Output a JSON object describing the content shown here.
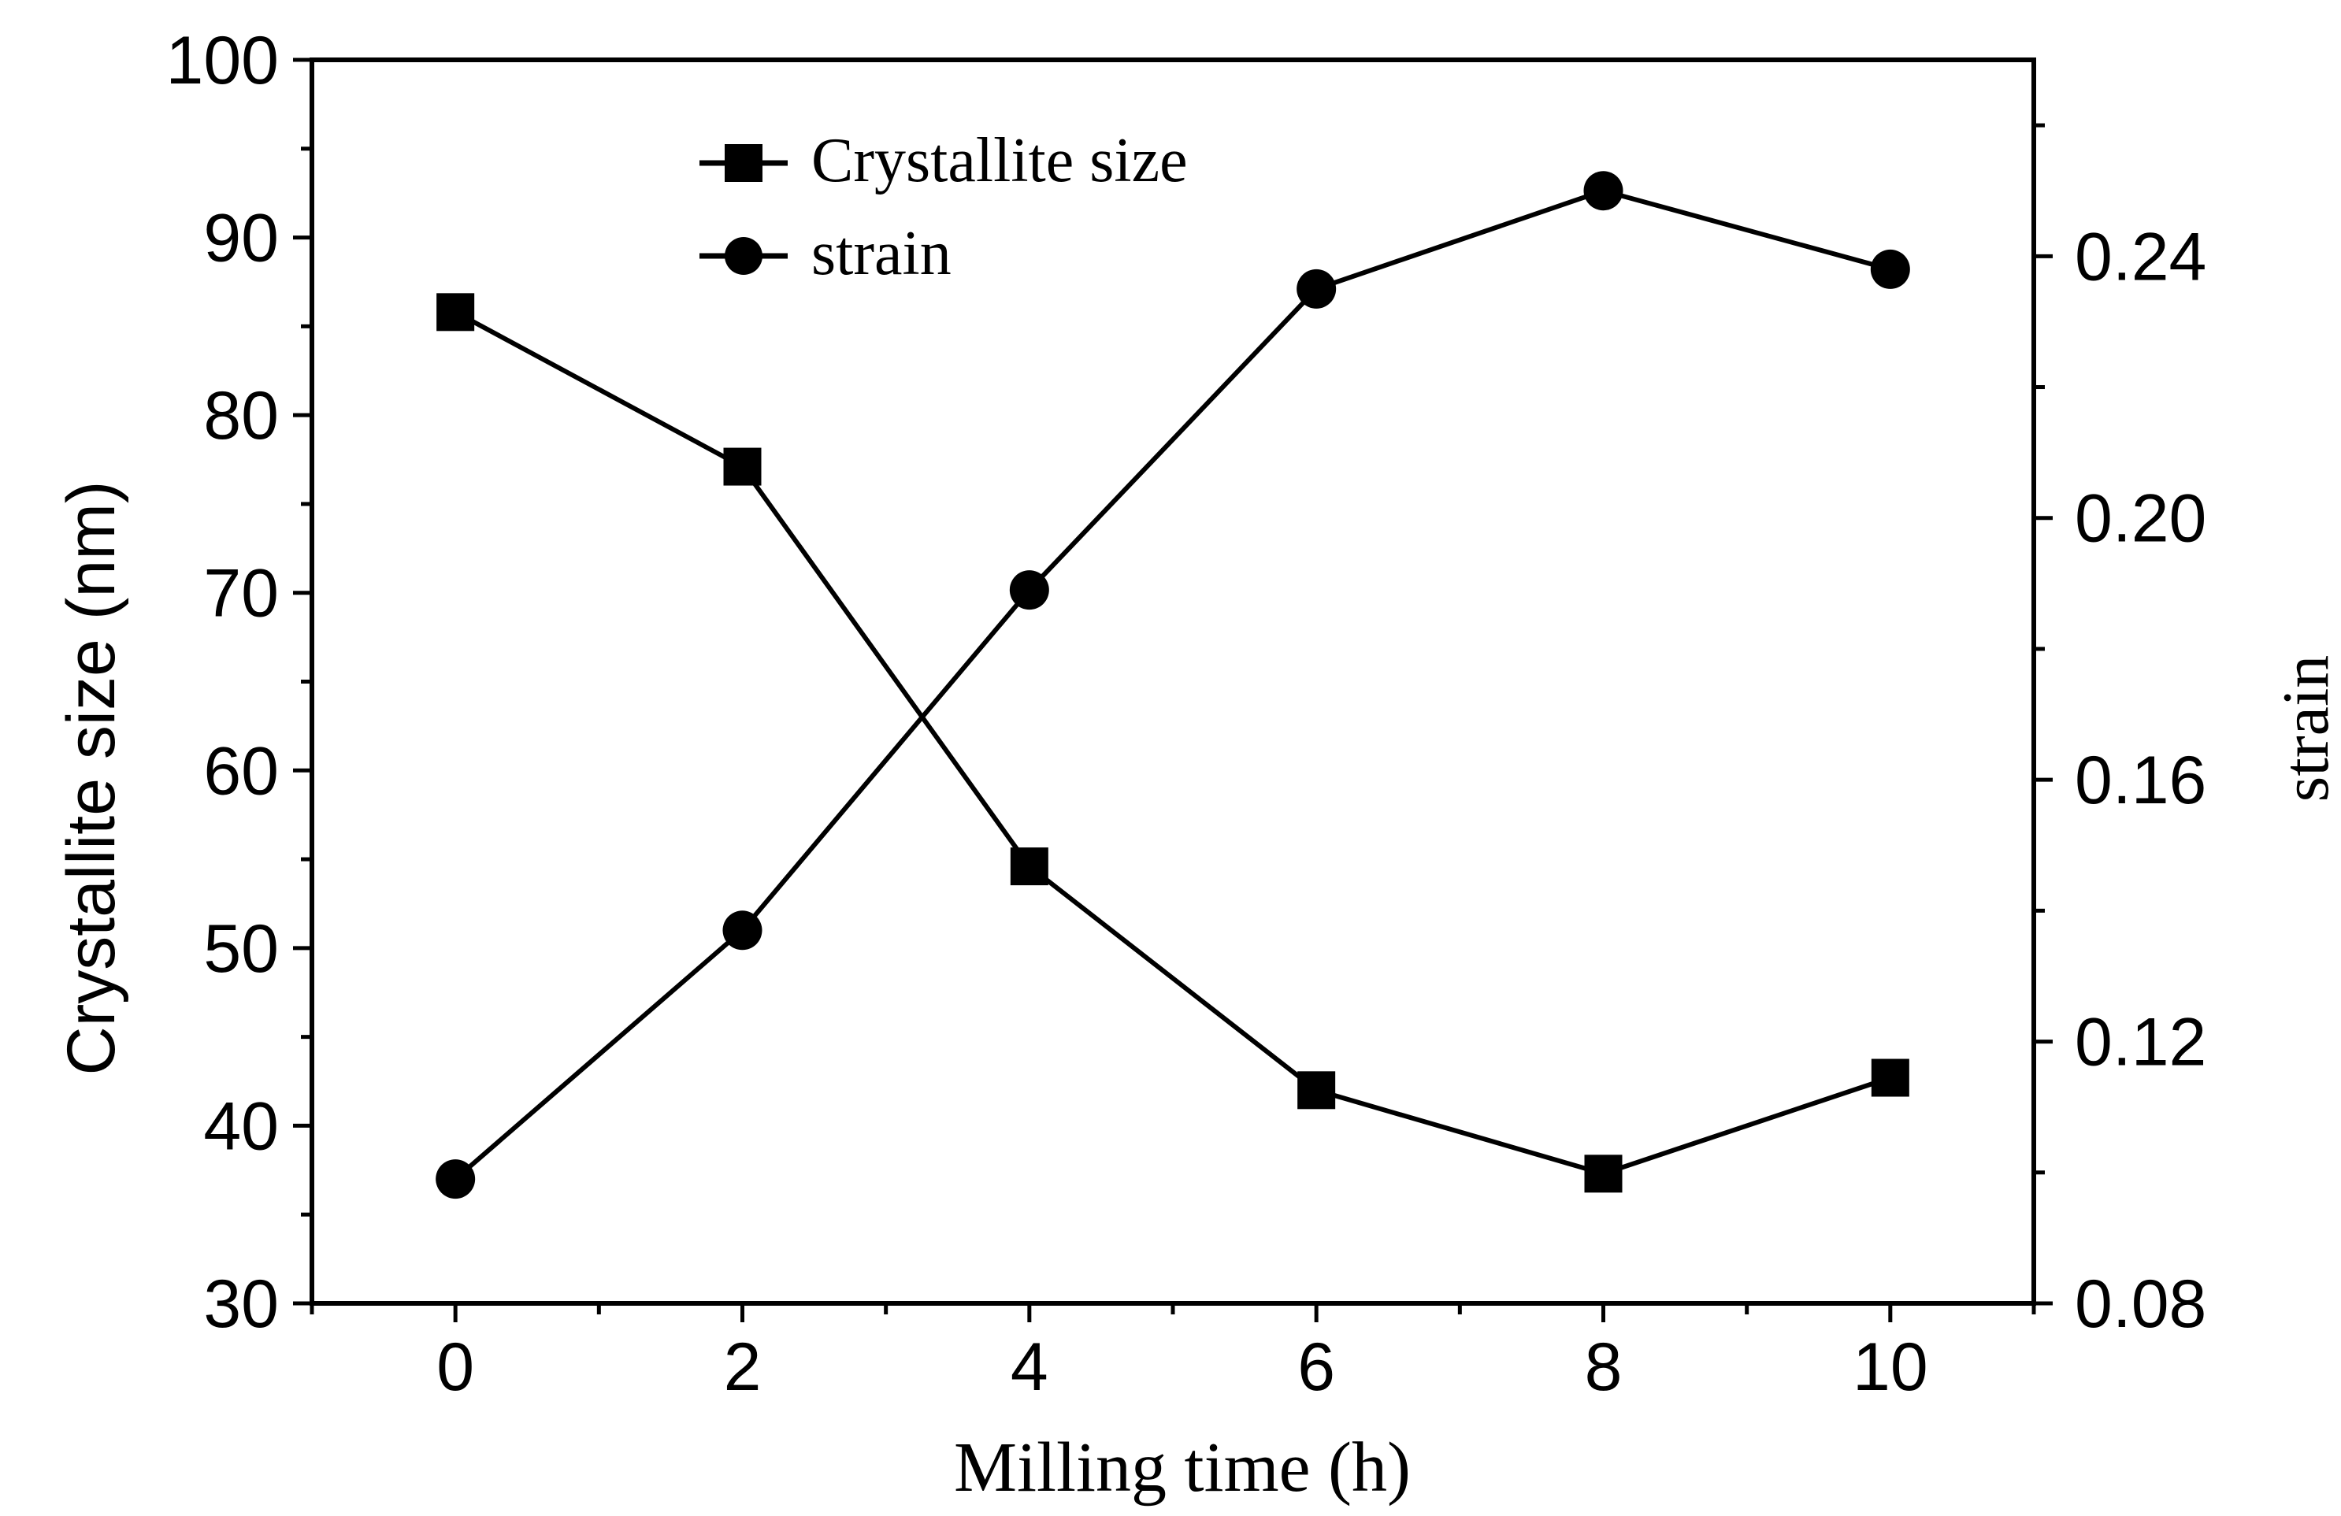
{
  "chart_data": {
    "type": "line",
    "xlabel": "Milling time (h)",
    "ylabel_left": "Crystallite size (nm)",
    "ylabel_right": "strain",
    "xlim": [
      -1,
      11
    ],
    "ylim_left": [
      30,
      100
    ],
    "ylim_right": [
      0.08,
      0.27
    ],
    "x_ticks": [
      0,
      2,
      4,
      6,
      8,
      10
    ],
    "x_tick_labels": [
      "0",
      "2",
      "4",
      "6",
      "8",
      "10"
    ],
    "y_left_ticks": [
      30,
      40,
      50,
      60,
      70,
      80,
      90,
      100
    ],
    "y_left_tick_labels": [
      "30",
      "40",
      "50",
      "60",
      "70",
      "80",
      "90",
      "100"
    ],
    "y_right_ticks": [
      0.08,
      0.12,
      0.16,
      0.2,
      0.24
    ],
    "y_right_tick_labels": [
      "0.08",
      "0.12",
      "0.16",
      "0.20",
      "0.24"
    ],
    "legend_position": "top-left",
    "grid": false,
    "series": [
      {
        "name": "Crystallite size",
        "axis": "left",
        "marker": "square",
        "x": [
          0,
          2,
          4,
          6,
          8,
          10
        ],
        "values": [
          85.8,
          77.1,
          54.6,
          42.0,
          37.3,
          42.7
        ]
      },
      {
        "name": "strain",
        "axis": "right",
        "marker": "circle",
        "x": [
          0,
          2,
          4,
          6,
          8,
          10
        ],
        "values": [
          0.099,
          0.137,
          0.189,
          0.235,
          0.25,
          0.238
        ]
      }
    ]
  },
  "colors": {
    "line": "#000000",
    "background": "#ffffff"
  }
}
